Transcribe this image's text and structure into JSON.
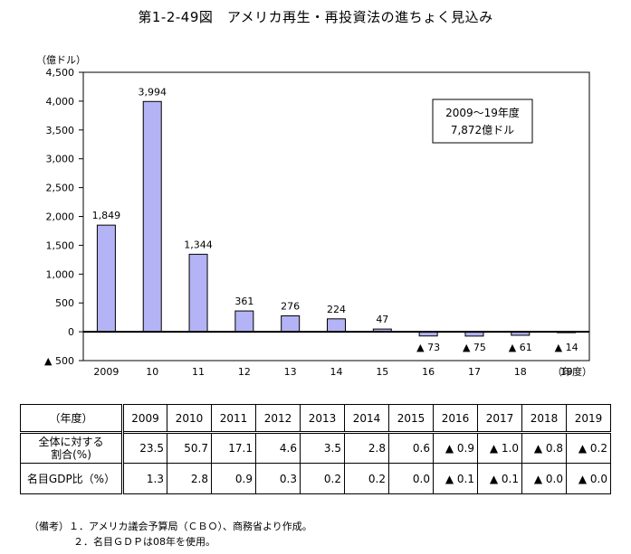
{
  "title": "第1-2-49図　アメリカ再生・再投資法の進ちょく見込み",
  "chart_data": {
    "type": "bar",
    "ylabel": "（億ドル）",
    "xlabel": "（年度）",
    "categories": [
      "2009",
      "10",
      "11",
      "12",
      "13",
      "14",
      "15",
      "16",
      "17",
      "18",
      "19"
    ],
    "values": [
      1849,
      3994,
      1344,
      361,
      276,
      224,
      47,
      -73,
      -75,
      -61,
      -14
    ],
    "value_labels": [
      "1,849",
      "3,994",
      "1,344",
      "361",
      "276",
      "224",
      "47",
      "▲ 73",
      "▲ 75",
      "▲ 61",
      "▲ 14"
    ],
    "ylim": [
      -500,
      4500
    ],
    "yticks": [
      4500,
      4000,
      3500,
      3000,
      2500,
      2000,
      1500,
      1000,
      500,
      0,
      -500
    ],
    "ytick_labels": [
      "4,500",
      "4,000",
      "3,500",
      "3,000",
      "2,500",
      "2,000",
      "1,500",
      "1,000",
      "500",
      "0",
      "▲ 500"
    ],
    "bar_color": "#b3b3f5",
    "annotation": [
      "2009～19年度",
      "7,872億ドル"
    ]
  },
  "table": {
    "header_label": "（年度）",
    "years": [
      "2009",
      "2010",
      "2011",
      "2012",
      "2013",
      "2014",
      "2015",
      "2016",
      "2017",
      "2018",
      "2019"
    ],
    "rows": [
      {
        "label_line1": "全体に対する",
        "label_line2": "割合(%)",
        "values": [
          "23.5",
          "50.7",
          "17.1",
          "4.6",
          "3.5",
          "2.8",
          "0.6",
          "▲ 0.9",
          "▲ 1.0",
          "▲ 0.8",
          "▲ 0.2"
        ]
      },
      {
        "label_line1": "名目GDP比（%）",
        "label_line2": "",
        "values": [
          "1.3",
          "2.8",
          "0.9",
          "0.3",
          "0.2",
          "0.2",
          "0.0",
          "▲ 0.1",
          "▲ 0.1",
          "▲ 0.0",
          "▲ 0.0"
        ]
      }
    ]
  },
  "notes": {
    "line1": "（備考）１．アメリカ議会予算局（ＣＢＯ）、商務省より作成。",
    "line2": "２．名目ＧＤＰは08年を使用。"
  }
}
